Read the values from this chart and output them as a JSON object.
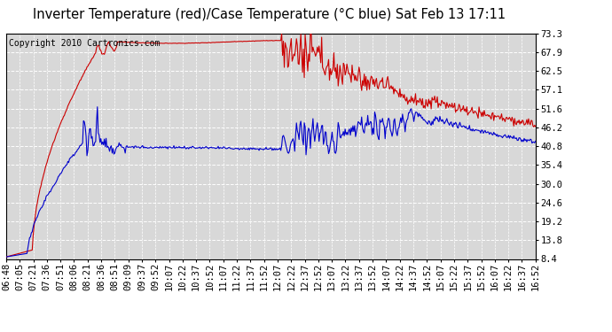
{
  "title": "Inverter Temperature (red)/Case Temperature (°C blue) Sat Feb 13 17:11",
  "copyright": "Copyright 2010 Cartronics.com",
  "y_ticks": [
    8.4,
    13.8,
    19.2,
    24.6,
    30.0,
    35.4,
    40.8,
    46.2,
    51.6,
    57.1,
    62.5,
    67.9,
    73.3
  ],
  "ylim": [
    8.4,
    73.3
  ],
  "x_labels": [
    "06:48",
    "07:05",
    "07:21",
    "07:36",
    "07:51",
    "08:06",
    "08:21",
    "08:36",
    "08:51",
    "09:09",
    "09:37",
    "09:52",
    "10:07",
    "10:22",
    "10:37",
    "10:52",
    "11:07",
    "11:22",
    "11:37",
    "11:52",
    "12:07",
    "12:22",
    "12:37",
    "12:52",
    "13:07",
    "13:22",
    "13:37",
    "13:52",
    "14:07",
    "14:22",
    "14:37",
    "14:52",
    "15:07",
    "15:22",
    "15:37",
    "15:52",
    "16:07",
    "16:22",
    "16:37",
    "16:52"
  ],
  "red_color": "#cc0000",
  "blue_color": "#0000cc",
  "bg_color": "#ffffff",
  "plot_bg_color": "#d8d8d8",
  "grid_color": "#ffffff",
  "title_fontsize": 10.5,
  "copyright_fontsize": 7,
  "tick_fontsize": 7.5,
  "n_points": 610
}
